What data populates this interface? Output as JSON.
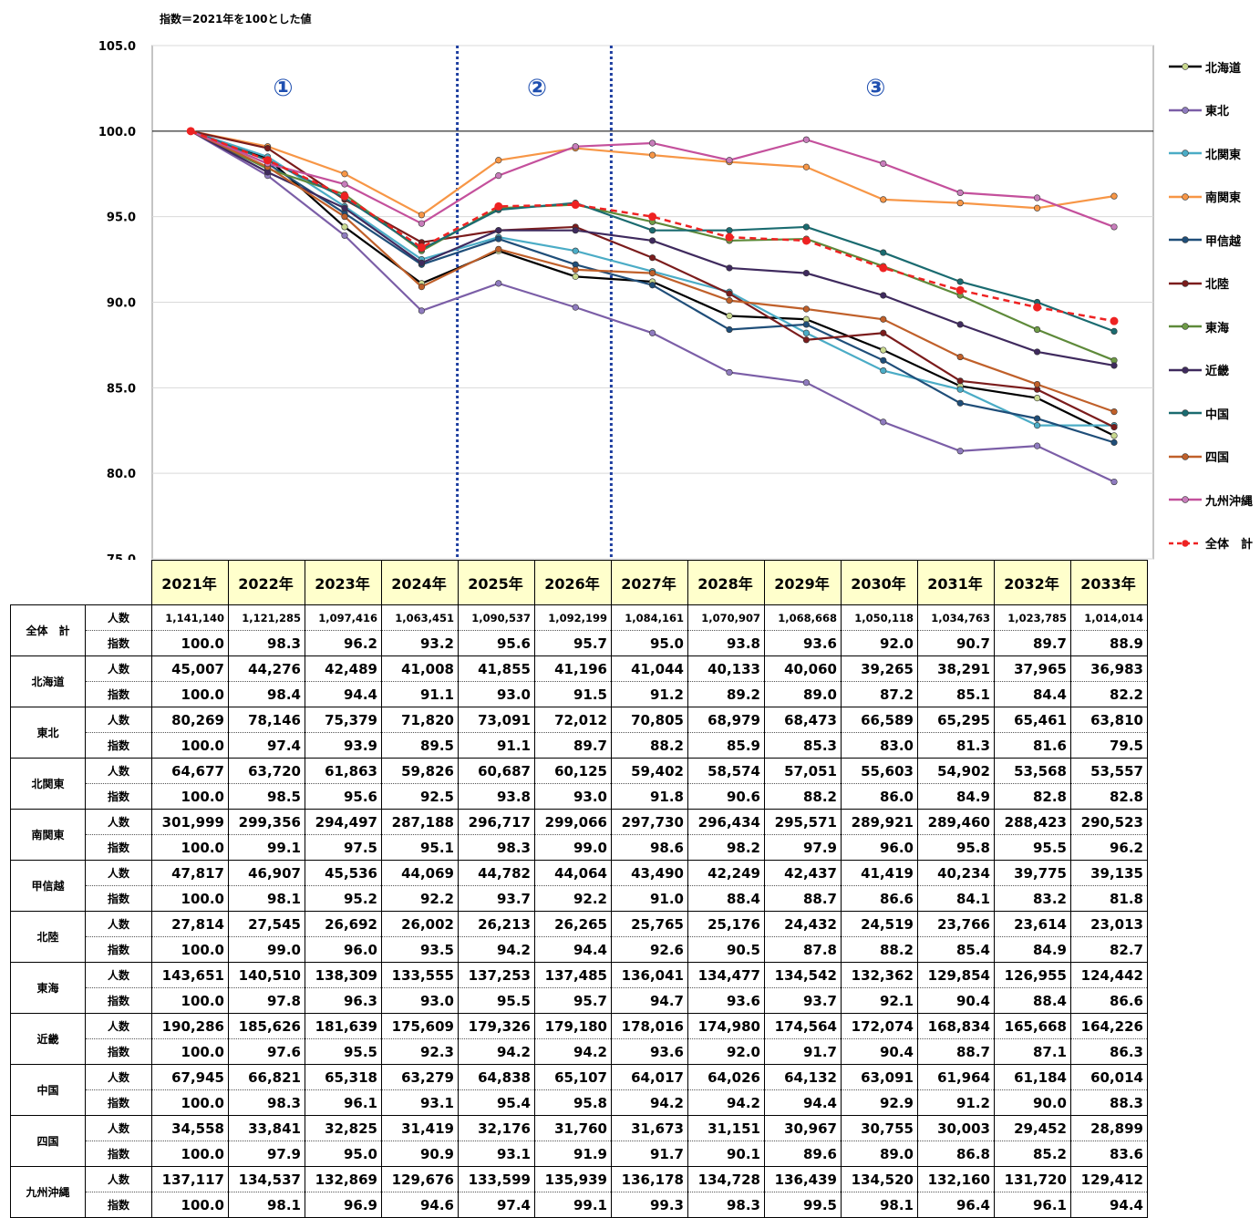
{
  "subtitle": "指数＝2021年を100とした値",
  "phases": [
    "①",
    "②",
    "③"
  ],
  "kind_labels": {
    "people": "人数",
    "index": "指数"
  },
  "chart_data": {
    "type": "line",
    "ylim": [
      75,
      105
    ],
    "yticks": [
      "105.0",
      "100.0",
      "95.0",
      "90.0",
      "85.0",
      "80.0",
      "75.0"
    ],
    "ytick_values": [
      105,
      100,
      95,
      90,
      85,
      80,
      75
    ],
    "categories": [
      "2021年",
      "2022年",
      "2023年",
      "2024年",
      "2025年",
      "2026年",
      "2027年",
      "2028年",
      "2029年",
      "2030年",
      "2031年",
      "2032年",
      "2033年"
    ],
    "phase_dividers_after": [
      "2024年",
      "2026年"
    ],
    "series": [
      {
        "name": "北海道",
        "color": "#000000",
        "marker": "#c9d98f",
        "dashed": false,
        "values": [
          100.0,
          98.4,
          94.4,
          91.1,
          93.0,
          91.5,
          91.2,
          89.2,
          89.0,
          87.2,
          85.1,
          84.4,
          82.2
        ]
      },
      {
        "name": "東北",
        "color": "#7b5ea7",
        "marker": "#8f7bbf",
        "dashed": false,
        "values": [
          100.0,
          97.4,
          93.9,
          89.5,
          91.1,
          89.7,
          88.2,
          85.9,
          85.3,
          83.0,
          81.3,
          81.6,
          79.5
        ]
      },
      {
        "name": "北関東",
        "color": "#4bacc6",
        "marker": "#4bacc6",
        "dashed": false,
        "values": [
          100.0,
          98.5,
          95.6,
          92.5,
          93.8,
          93.0,
          91.8,
          90.6,
          88.2,
          86.0,
          84.9,
          82.8,
          82.8
        ]
      },
      {
        "name": "南関東",
        "color": "#f79646",
        "marker": "#f79646",
        "dashed": false,
        "values": [
          100.0,
          99.1,
          97.5,
          95.1,
          98.3,
          99.0,
          98.6,
          98.2,
          97.9,
          96.0,
          95.8,
          95.5,
          96.2
        ]
      },
      {
        "name": "甲信越",
        "color": "#1f4e79",
        "marker": "#1f4e79",
        "dashed": false,
        "values": [
          100.0,
          98.1,
          95.2,
          92.2,
          93.7,
          92.2,
          91.0,
          88.4,
          88.7,
          86.6,
          84.1,
          83.2,
          81.8
        ]
      },
      {
        "name": "北陸",
        "color": "#7b1c1c",
        "marker": "#7b1c1c",
        "dashed": false,
        "values": [
          100.0,
          99.0,
          96.0,
          93.5,
          94.2,
          94.4,
          92.6,
          90.5,
          87.8,
          88.2,
          85.4,
          84.9,
          82.7
        ]
      },
      {
        "name": "東海",
        "color": "#5e8a3a",
        "marker": "#6e9b46",
        "dashed": false,
        "values": [
          100.0,
          97.8,
          96.3,
          93.0,
          95.5,
          95.7,
          94.7,
          93.6,
          93.7,
          92.1,
          90.4,
          88.4,
          86.6
        ]
      },
      {
        "name": "近畿",
        "color": "#3f2a5e",
        "marker": "#3f2a5e",
        "dashed": false,
        "values": [
          100.0,
          97.6,
          95.5,
          92.3,
          94.2,
          94.2,
          93.6,
          92.0,
          91.7,
          90.4,
          88.7,
          87.1,
          86.3
        ]
      },
      {
        "name": "中国",
        "color": "#1a6b70",
        "marker": "#1a6b70",
        "dashed": false,
        "values": [
          100.0,
          98.3,
          96.1,
          93.1,
          95.4,
          95.8,
          94.2,
          94.2,
          94.4,
          92.9,
          91.2,
          90.0,
          88.3
        ]
      },
      {
        "name": "四国",
        "color": "#c0602a",
        "marker": "#c0602a",
        "dashed": false,
        "values": [
          100.0,
          97.9,
          95.0,
          90.9,
          93.1,
          91.9,
          91.7,
          90.1,
          89.6,
          89.0,
          86.8,
          85.2,
          83.6
        ]
      },
      {
        "name": "九州沖縄",
        "color": "#c4509c",
        "marker": "#c87dbb",
        "dashed": false,
        "values": [
          100.0,
          98.1,
          96.9,
          94.6,
          97.4,
          99.1,
          99.3,
          98.3,
          99.5,
          98.1,
          96.4,
          96.1,
          94.4
        ]
      },
      {
        "name": "全体　計",
        "color": "#ee2222",
        "marker": "#ee2222",
        "dashed": true,
        "values": [
          100.0,
          98.3,
          96.2,
          93.2,
          95.6,
          95.7,
          95.0,
          93.8,
          93.6,
          92.0,
          90.7,
          89.7,
          88.9
        ]
      }
    ]
  },
  "table": {
    "rows": [
      {
        "region": "全体　計",
        "people": [
          "1,141,140",
          "1,121,285",
          "1,097,416",
          "1,063,451",
          "1,090,537",
          "1,092,199",
          "1,084,161",
          "1,070,907",
          "1,068,668",
          "1,050,118",
          "1,034,763",
          "1,023,785",
          "1,014,014"
        ],
        "index": [
          "100.0",
          "98.3",
          "96.2",
          "93.2",
          "95.6",
          "95.7",
          "95.0",
          "93.8",
          "93.6",
          "92.0",
          "90.7",
          "89.7",
          "88.9"
        ]
      },
      {
        "region": "北海道",
        "people": [
          "45,007",
          "44,276",
          "42,489",
          "41,008",
          "41,855",
          "41,196",
          "41,044",
          "40,133",
          "40,060",
          "39,265",
          "38,291",
          "37,965",
          "36,983"
        ],
        "index": [
          "100.0",
          "98.4",
          "94.4",
          "91.1",
          "93.0",
          "91.5",
          "91.2",
          "89.2",
          "89.0",
          "87.2",
          "85.1",
          "84.4",
          "82.2"
        ]
      },
      {
        "region": "東北",
        "people": [
          "80,269",
          "78,146",
          "75,379",
          "71,820",
          "73,091",
          "72,012",
          "70,805",
          "68,979",
          "68,473",
          "66,589",
          "65,295",
          "65,461",
          "63,810"
        ],
        "index": [
          "100.0",
          "97.4",
          "93.9",
          "89.5",
          "91.1",
          "89.7",
          "88.2",
          "85.9",
          "85.3",
          "83.0",
          "81.3",
          "81.6",
          "79.5"
        ]
      },
      {
        "region": "北関東",
        "people": [
          "64,677",
          "63,720",
          "61,863",
          "59,826",
          "60,687",
          "60,125",
          "59,402",
          "58,574",
          "57,051",
          "55,603",
          "54,902",
          "53,568",
          "53,557"
        ],
        "index": [
          "100.0",
          "98.5",
          "95.6",
          "92.5",
          "93.8",
          "93.0",
          "91.8",
          "90.6",
          "88.2",
          "86.0",
          "84.9",
          "82.8",
          "82.8"
        ]
      },
      {
        "region": "南関東",
        "people": [
          "301,999",
          "299,356",
          "294,497",
          "287,188",
          "296,717",
          "299,066",
          "297,730",
          "296,434",
          "295,571",
          "289,921",
          "289,460",
          "288,423",
          "290,523"
        ],
        "index": [
          "100.0",
          "99.1",
          "97.5",
          "95.1",
          "98.3",
          "99.0",
          "98.6",
          "98.2",
          "97.9",
          "96.0",
          "95.8",
          "95.5",
          "96.2"
        ]
      },
      {
        "region": "甲信越",
        "people": [
          "47,817",
          "46,907",
          "45,536",
          "44,069",
          "44,782",
          "44,064",
          "43,490",
          "42,249",
          "42,437",
          "41,419",
          "40,234",
          "39,775",
          "39,135"
        ],
        "index": [
          "100.0",
          "98.1",
          "95.2",
          "92.2",
          "93.7",
          "92.2",
          "91.0",
          "88.4",
          "88.7",
          "86.6",
          "84.1",
          "83.2",
          "81.8"
        ]
      },
      {
        "region": "北陸",
        "people": [
          "27,814",
          "27,545",
          "26,692",
          "26,002",
          "26,213",
          "26,265",
          "25,765",
          "25,176",
          "24,432",
          "24,519",
          "23,766",
          "23,614",
          "23,013"
        ],
        "index": [
          "100.0",
          "99.0",
          "96.0",
          "93.5",
          "94.2",
          "94.4",
          "92.6",
          "90.5",
          "87.8",
          "88.2",
          "85.4",
          "84.9",
          "82.7"
        ]
      },
      {
        "region": "東海",
        "people": [
          "143,651",
          "140,510",
          "138,309",
          "133,555",
          "137,253",
          "137,485",
          "136,041",
          "134,477",
          "134,542",
          "132,362",
          "129,854",
          "126,955",
          "124,442"
        ],
        "index": [
          "100.0",
          "97.8",
          "96.3",
          "93.0",
          "95.5",
          "95.7",
          "94.7",
          "93.6",
          "93.7",
          "92.1",
          "90.4",
          "88.4",
          "86.6"
        ]
      },
      {
        "region": "近畿",
        "people": [
          "190,286",
          "185,626",
          "181,639",
          "175,609",
          "179,326",
          "179,180",
          "178,016",
          "174,980",
          "174,564",
          "172,074",
          "168,834",
          "165,668",
          "164,226"
        ],
        "index": [
          "100.0",
          "97.6",
          "95.5",
          "92.3",
          "94.2",
          "94.2",
          "93.6",
          "92.0",
          "91.7",
          "90.4",
          "88.7",
          "87.1",
          "86.3"
        ]
      },
      {
        "region": "中国",
        "people": [
          "67,945",
          "66,821",
          "65,318",
          "63,279",
          "64,838",
          "65,107",
          "64,017",
          "64,026",
          "64,132",
          "63,091",
          "61,964",
          "61,184",
          "60,014"
        ],
        "index": [
          "100.0",
          "98.3",
          "96.1",
          "93.1",
          "95.4",
          "95.8",
          "94.2",
          "94.2",
          "94.4",
          "92.9",
          "91.2",
          "90.0",
          "88.3"
        ]
      },
      {
        "region": "四国",
        "people": [
          "34,558",
          "33,841",
          "32,825",
          "31,419",
          "32,176",
          "31,760",
          "31,673",
          "31,151",
          "30,967",
          "30,755",
          "30,003",
          "29,452",
          "28,899"
        ],
        "index": [
          "100.0",
          "97.9",
          "95.0",
          "90.9",
          "93.1",
          "91.9",
          "91.7",
          "90.1",
          "89.6",
          "89.0",
          "86.8",
          "85.2",
          "83.6"
        ]
      },
      {
        "region": "九州沖縄",
        "people": [
          "137,117",
          "134,537",
          "132,869",
          "129,676",
          "133,599",
          "135,939",
          "136,178",
          "134,728",
          "136,439",
          "134,520",
          "132,160",
          "131,720",
          "129,412"
        ],
        "index": [
          "100.0",
          "98.1",
          "96.9",
          "94.6",
          "97.4",
          "99.1",
          "99.3",
          "98.3",
          "99.5",
          "98.1",
          "96.4",
          "96.1",
          "94.4"
        ]
      }
    ]
  }
}
